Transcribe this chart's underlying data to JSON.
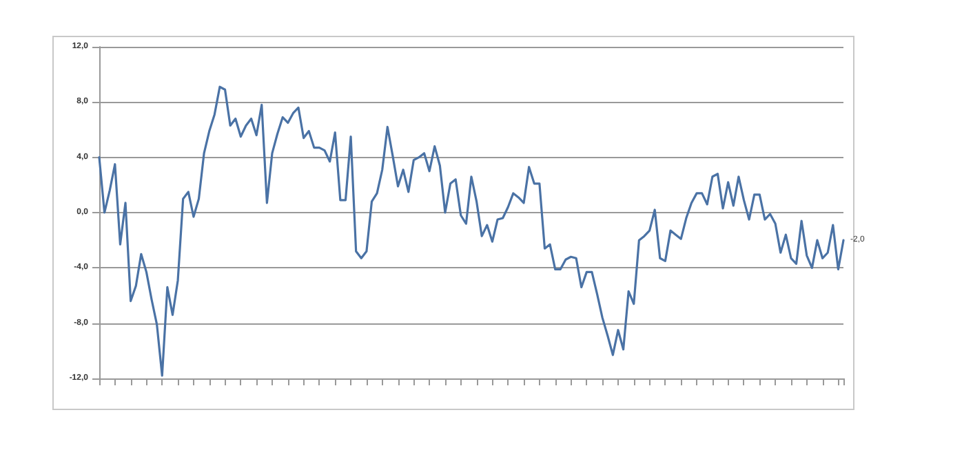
{
  "chart_data": {
    "type": "line",
    "categories": [
      null,
      null,
      null,
      null,
      null,
      null,
      null,
      null,
      null,
      null,
      null,
      null,
      null,
      null,
      null,
      null,
      null,
      null,
      null,
      null,
      null,
      null,
      null,
      null,
      null,
      null,
      null,
      null,
      null,
      null,
      null,
      null,
      null,
      null,
      null,
      null,
      null,
      null,
      null,
      null,
      null,
      null,
      null,
      null,
      null,
      null,
      null,
      null,
      null,
      null,
      null,
      null,
      null,
      null,
      null,
      null,
      null,
      null,
      null,
      null,
      null,
      null,
      null,
      null,
      null,
      null,
      null,
      null,
      null,
      null,
      null,
      null,
      null,
      null,
      null,
      null,
      null,
      null,
      null,
      null,
      null,
      null,
      null,
      null,
      null,
      null,
      null,
      null,
      null,
      null,
      null,
      null,
      null,
      null,
      null,
      null,
      null,
      null,
      null,
      null,
      null,
      null,
      null,
      null,
      null,
      null,
      null,
      null,
      null,
      null,
      null,
      null,
      null,
      null,
      null,
      null,
      null,
      null,
      null,
      null,
      null,
      null,
      null,
      null,
      null,
      null,
      null,
      null,
      null,
      null,
      null,
      null,
      null,
      null,
      null,
      null,
      null,
      null,
      null,
      null,
      null,
      null,
      null
    ],
    "series": [
      {
        "color": "#4a72a5",
        "values": [
          4.0,
          0,
          1.6,
          3.5,
          -2.3,
          0.7,
          -6.4,
          -5.3,
          -3.0,
          -4.3,
          -6.3,
          -8.1,
          -11.8,
          -5.4,
          -7.4,
          -4.9,
          1.0,
          1.5,
          -0.3,
          1.0,
          4.3,
          5.9,
          7.1,
          9.1,
          8.9,
          6.3,
          6.8,
          5.5,
          6.3,
          6.8,
          5.6,
          7.8,
          0.7,
          4.3,
          5.7,
          6.9,
          6.5,
          7.2,
          7.6,
          5.4,
          5.9,
          4.7,
          4.7,
          4.5,
          3.7,
          5.8,
          0.9,
          0.9,
          5.5,
          -2.8,
          -3.3,
          -2.8,
          0.8,
          1.4,
          3.1,
          6.2,
          4.1,
          1.9,
          3.1,
          1.5,
          3.8,
          4.0,
          4.3,
          3.0,
          4.8,
          3.4,
          0,
          2.1,
          2.4,
          -0.2,
          -0.8,
          2.6,
          0.8,
          -1.7,
          -0.9,
          -2.1,
          -0.5,
          -0.4,
          0.4,
          1.4,
          1.1,
          0.7,
          3.3,
          2.1,
          2.1,
          -2.6,
          -2.3,
          -4.1,
          -4.1,
          -3.4,
          -3.2,
          -3.3,
          -5.4,
          -4.3,
          -4.3,
          -5.9,
          -7.6,
          -8.9,
          -10.3,
          -8.5,
          -9.9,
          -5.7,
          -6.6,
          -2.0,
          -1.7,
          -1.3,
          0.2,
          -3.3,
          -3.5,
          -1.3,
          -1.6,
          -1.9,
          -0.4,
          0.7,
          1.4,
          1.4,
          0.6,
          2.6,
          2.8,
          0.3,
          2.2,
          0.5,
          2.6,
          0.9,
          -0.5,
          1.3,
          1.3,
          -0.5,
          -0.1,
          -0.8,
          -2.9,
          -1.6,
          -3.3,
          -3.7,
          -0.6,
          -3.1,
          -4.0,
          -2.0,
          -3.3,
          -2.9,
          -0.9,
          -4.1,
          -2.0
        ],
        "value_labels": [
          null,
          null,
          null,
          null,
          null,
          null,
          null,
          null,
          null,
          null,
          null,
          null,
          null,
          null,
          null,
          null,
          null,
          null,
          null,
          null,
          null,
          null,
          null,
          null,
          null,
          null,
          null,
          null,
          null,
          null,
          null,
          null,
          null,
          null,
          null,
          null,
          null,
          null,
          null,
          null,
          null,
          null,
          null,
          null,
          null,
          null,
          null,
          null,
          null,
          null,
          null,
          null,
          null,
          null,
          null,
          null,
          null,
          null,
          null,
          null,
          null,
          null,
          null,
          null,
          null,
          null,
          null,
          null,
          null,
          null,
          null,
          null,
          null,
          null,
          null,
          null,
          null,
          null,
          null,
          null,
          null,
          null,
          null,
          null,
          null,
          null,
          null,
          null,
          null,
          null,
          null,
          null,
          null,
          null,
          null,
          null,
          null,
          null,
          null,
          null,
          null,
          null,
          null,
          null,
          null,
          null,
          null,
          null,
          null,
          null,
          null,
          null,
          null,
          null,
          null,
          null,
          null,
          null,
          null,
          null,
          null,
          null,
          null,
          null,
          null,
          null,
          null,
          null,
          null,
          null,
          null,
          null,
          null,
          null,
          null,
          null,
          null,
          null,
          null,
          null,
          null,
          null,
          "-2,0"
        ]
      }
    ],
    "ylim": [
      -12,
      12
    ],
    "yticks": [
      {
        "value": -12,
        "label": "-12,0"
      },
      {
        "value": -8,
        "label": "-8,0"
      },
      {
        "value": -4,
        "label": "-4,0"
      },
      {
        "value": 0,
        "label": "0,0"
      },
      {
        "value": 4,
        "label": "4,0"
      },
      {
        "value": 8,
        "label": "8,0"
      },
      {
        "value": 12,
        "label": "12,0"
      }
    ],
    "grid": "y",
    "marker": "none",
    "line_style": "solid"
  }
}
